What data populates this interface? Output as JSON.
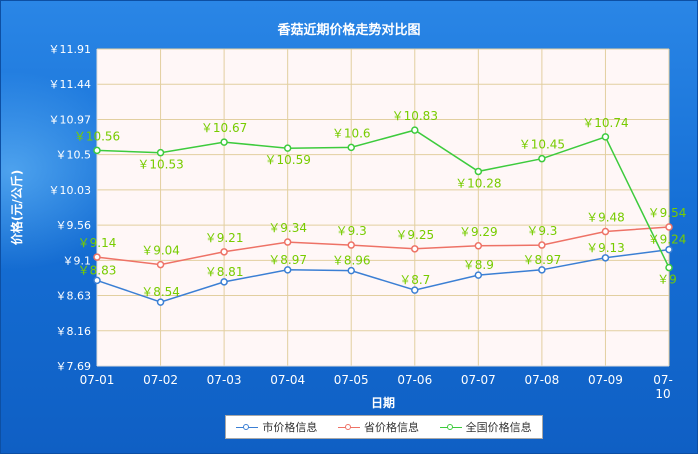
{
  "title": "香菇近期价格走势对比图",
  "colors": {
    "city": "#3b7fd4",
    "province": "#ee7266",
    "national": "#3dcb3d",
    "label_green": "#77cc00",
    "grid": "#e2cfa0",
    "plot_bg": "#fff7f7"
  },
  "chart_data": {
    "type": "line",
    "title": "香菇近期价格走势对比图",
    "xlabel": "日期",
    "ylabel": "价格(元/公斤)",
    "categories": [
      "07-01",
      "07-02",
      "07-03",
      "07-04",
      "07-05",
      "07-06",
      "07-07",
      "07-08",
      "07-09",
      "07-10"
    ],
    "y_ticks": [
      "￥7.69",
      "￥8.16",
      "￥8.63",
      "￥9.1",
      "￥9.56",
      "￥10.03",
      "￥10.5",
      "￥10.97",
      "￥11.44",
      "￥11.91"
    ],
    "ylim": [
      7.69,
      11.91
    ],
    "grid": true,
    "legend_position": "bottom",
    "series": [
      {
        "name": "市价格信息",
        "values": [
          8.83,
          8.54,
          8.81,
          8.97,
          8.96,
          8.7,
          8.9,
          8.97,
          9.13,
          9.24
        ],
        "labels": [
          "￥8.83",
          "￥8.54",
          "￥8.81",
          "￥8.97",
          "￥8.96",
          "￥8.7",
          "￥8.9",
          "￥8.97",
          "￥9.13",
          "￥9.24"
        ]
      },
      {
        "name": "省价格信息",
        "values": [
          9.14,
          9.04,
          9.21,
          9.34,
          9.3,
          9.25,
          9.29,
          9.3,
          9.48,
          9.54
        ],
        "labels": [
          "￥9.14",
          "￥9.04",
          "￥9.21",
          "￥9.34",
          "￥9.3",
          "￥9.25",
          "￥9.29",
          "￥9.3",
          "￥9.48",
          "￥9.54"
        ]
      },
      {
        "name": "全国价格信息",
        "values": [
          10.56,
          10.53,
          10.67,
          10.59,
          10.6,
          10.83,
          10.28,
          10.45,
          10.74,
          9.0
        ],
        "labels": [
          "￥10.56",
          "￥10.53",
          "￥10.67",
          "￥10.59",
          "￥10.6",
          "￥10.83",
          "￥10.28",
          "￥10.45",
          "￥10.74",
          "￥9"
        ]
      }
    ]
  }
}
